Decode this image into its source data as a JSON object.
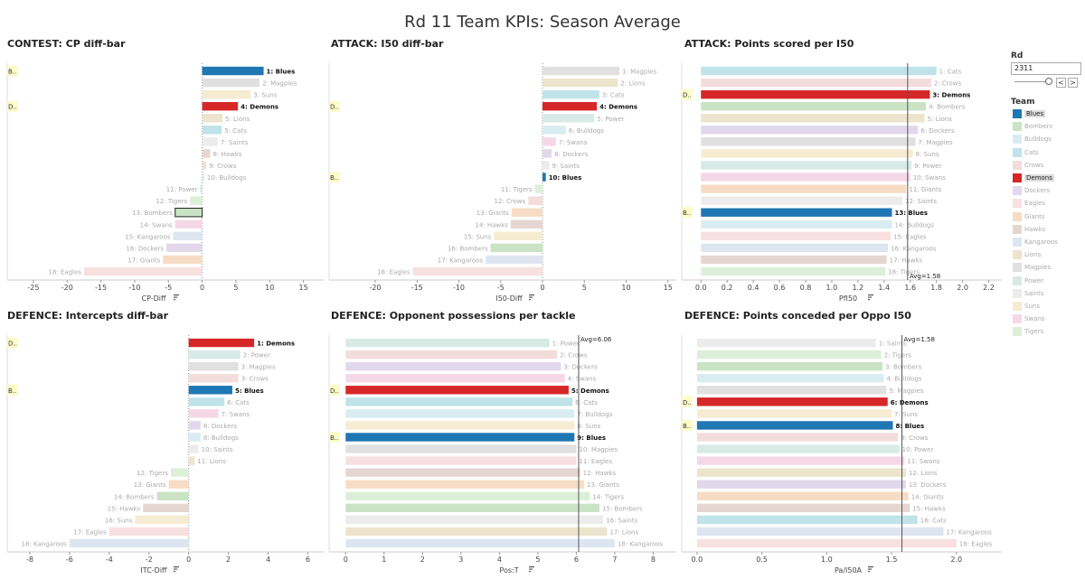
{
  "title": "Rd 11 Team KPIs: Season Average",
  "chart_data": [
    {
      "type": "bar",
      "title": "CONTEST: CP diff-bar",
      "xlabel": "CP-Diff",
      "xlim": [
        -27,
        18
      ],
      "ticks": [
        -25,
        -20,
        -15,
        -10,
        -5,
        0,
        5,
        10,
        15
      ],
      "categories": [
        "1: Blues",
        "2: Magpies",
        "3: Suns",
        "4: Demons",
        "5: Lions",
        "5: Cats",
        "7: Saints",
        "8: Hawks",
        "9: Crows",
        "10: Bulldogs",
        "11: Power",
        "12: Tigers",
        "13: Bombers",
        "14: Swans",
        "15: Kangaroos",
        "16: Dockers",
        "17: Giants",
        "18: Eagles"
      ],
      "values": [
        9.1,
        8.5,
        7.2,
        5.3,
        3.0,
        2.9,
        2.3,
        1.2,
        0.6,
        0.3,
        -0.3,
        -1.8,
        -4.0,
        -4.0,
        -4.3,
        -5.3,
        -5.8,
        -17.5
      ],
      "markers": [
        "B..",
        "D.."
      ]
    },
    {
      "type": "bar",
      "title": "ATTACK: I50 diff-bar",
      "xlabel": "I50-Diff",
      "xlim": [
        -24,
        16
      ],
      "ticks": [
        -20,
        -15,
        -10,
        -5,
        0,
        5,
        10,
        15
      ],
      "categories": [
        "1: Magpies",
        "2: Lions",
        "3: Cats",
        "4: Demons",
        "5: Power",
        "6: Bulldogs",
        "7: Swans",
        "8: Dockers",
        "9: Saints",
        "10: Blues",
        "11: Tigers",
        "12: Crows",
        "13: Giants",
        "14: Hawks",
        "15: Suns",
        "16: Bombers",
        "17: Kangaroos",
        "18: Eagles"
      ],
      "values": [
        9.2,
        9.0,
        6.8,
        6.5,
        6.2,
        2.8,
        1.6,
        1.1,
        0.8,
        0.4,
        -0.9,
        -1.7,
        -3.7,
        -3.8,
        -5.8,
        -6.2,
        -6.8,
        -15.5
      ],
      "markers": [
        "D..",
        "B.."
      ]
    },
    {
      "type": "bar",
      "title": "ATTACK: Points scored per I50",
      "xlabel": "PfI50",
      "xlim": [
        -0.05,
        2.3
      ],
      "ticks": [
        0.0,
        0.2,
        0.4,
        0.6,
        0.8,
        1.0,
        1.2,
        1.4,
        1.6,
        1.8,
        2.0,
        2.2
      ],
      "categories": [
        "1: Cats",
        "2: Crows",
        "3: Demons",
        "4: Bombers",
        "5: Lions",
        "6: Dockers",
        "7: Magpies",
        "8: Suns",
        "9: Power",
        "10: Swans",
        "11: Giants",
        "12: Saints",
        "13: Blues",
        "14: Bulldogs",
        "15: Eagles",
        "16: Kangaroos",
        "17: Hawks",
        "18: Tigers"
      ],
      "values": [
        1.8,
        1.76,
        1.75,
        1.72,
        1.71,
        1.66,
        1.64,
        1.62,
        1.61,
        1.6,
        1.57,
        1.54,
        1.46,
        1.46,
        1.45,
        1.43,
        1.42,
        1.41
      ],
      "average": 1.58,
      "average_label": "Avg=1.58",
      "markers": [
        "D..",
        "B.."
      ]
    },
    {
      "type": "bar",
      "title": "DEFENCE: Intercepts diff-bar",
      "xlabel": "ITC-Diff",
      "xlim": [
        -8.5,
        6.8
      ],
      "ticks": [
        -8,
        -6,
        -4,
        -2,
        0,
        2,
        4,
        6
      ],
      "categories": [
        "1: Demons",
        "2: Power",
        "3: Magpies",
        "3: Crows",
        "5: Blues",
        "6: Cats",
        "7: Swans",
        "8: Dockers",
        "8: Bulldogs",
        "10: Saints",
        "11: Lions",
        "12: Tigers",
        "13: Giants",
        "14: Bombers",
        "15: Hawks",
        "16: Suns",
        "17: Eagles",
        "18: Kangaroos"
      ],
      "values": [
        3.3,
        2.6,
        2.5,
        2.5,
        2.2,
        1.8,
        1.5,
        0.6,
        0.6,
        0.5,
        0.3,
        -0.9,
        -1.0,
        -1.6,
        -2.3,
        -2.7,
        -4.0,
        -6.0
      ],
      "markers": [
        "D..",
        "B.."
      ]
    },
    {
      "type": "bar",
      "title": "DEFENCE: Opponent possessions per tackle",
      "xlabel": "Pos:T",
      "xlim": [
        -0.1,
        8.6
      ],
      "ticks": [
        0,
        1,
        2,
        3,
        4,
        5,
        6,
        7,
        8
      ],
      "categories": [
        "1: Power",
        "2: Crows",
        "3: Dockers",
        "4: Swans",
        "5: Demons",
        "6: Cats",
        "7: Bulldogs",
        "8: Suns",
        "9: Blues",
        "10: Magpies",
        "11: Eagles",
        "12: Hawks",
        "13: Giants",
        "14: Tigers",
        "15: Bombers",
        "16: Saints",
        "17: Lions",
        "18: Kangaroos"
      ],
      "values": [
        5.3,
        5.5,
        5.6,
        5.7,
        5.8,
        5.9,
        5.95,
        5.95,
        5.95,
        6.0,
        6.0,
        6.1,
        6.2,
        6.35,
        6.6,
        6.7,
        6.8,
        7.0
      ],
      "average": 6.06,
      "average_label": "Avg=6.06",
      "markers": [
        "D..",
        "B.."
      ]
    },
    {
      "type": "bar",
      "title": "DEFENCE: Points conceded per Oppo I50",
      "xlabel": "Pa/I50A",
      "xlim": [
        -0.02,
        2.35
      ],
      "ticks": [
        0.0,
        0.5,
        1.0,
        1.5,
        2.0
      ],
      "categories": [
        "1: Saints",
        "2: Tigers",
        "3: Bombers",
        "4: Bulldogs",
        "5: Magpies",
        "6: Demons",
        "7: Suns",
        "8: Blues",
        "9: Crows",
        "10: Power",
        "11: Swans",
        "12: Lions",
        "13: Dockers",
        "14: Giants",
        "15: Hawks",
        "16: Cats",
        "17: Kangaroos",
        "18: Eagles"
      ],
      "values": [
        1.38,
        1.42,
        1.43,
        1.44,
        1.46,
        1.47,
        1.5,
        1.51,
        1.55,
        1.56,
        1.6,
        1.61,
        1.61,
        1.63,
        1.64,
        1.7,
        1.9,
        2.0
      ],
      "average": 1.58,
      "average_label": "Avg=1.58",
      "markers": [
        "D..",
        "B.."
      ]
    }
  ],
  "filter": {
    "title": "Rd",
    "value": "2311",
    "prev": "<",
    "next": ">"
  },
  "legend": {
    "title": "Team",
    "items": [
      {
        "name": "Blues",
        "color": "#1f77b4",
        "highlight": true
      },
      {
        "name": "Bombers",
        "color": "#c9e3c4",
        "highlight": false
      },
      {
        "name": "Bulldogs",
        "color": "#d9ecf2",
        "highlight": false
      },
      {
        "name": "Cats",
        "color": "#bfe3e8",
        "highlight": false
      },
      {
        "name": "Crows",
        "color": "#f2dcdc",
        "highlight": false
      },
      {
        "name": "Demons",
        "color": "#d62728",
        "highlight": true
      },
      {
        "name": "Dockers",
        "color": "#e2d8ec",
        "highlight": false
      },
      {
        "name": "Eagles",
        "color": "#f8e0e0",
        "highlight": false
      },
      {
        "name": "Giants",
        "color": "#f6dcc4",
        "highlight": false
      },
      {
        "name": "Hawks",
        "color": "#e6d6d2",
        "highlight": false
      },
      {
        "name": "Kangaroos",
        "color": "#dde6f0",
        "highlight": false
      },
      {
        "name": "Lions",
        "color": "#ece4cc",
        "highlight": false
      },
      {
        "name": "Magpies",
        "color": "#e0e0e0",
        "highlight": false
      },
      {
        "name": "Power",
        "color": "#d8eae6",
        "highlight": false
      },
      {
        "name": "Saints",
        "color": "#ececec",
        "highlight": false
      },
      {
        "name": "Suns",
        "color": "#f6ecd2",
        "highlight": false
      },
      {
        "name": "Swans",
        "color": "#f4d8e6",
        "highlight": false
      },
      {
        "name": "Tigers",
        "color": "#dcefd8",
        "highlight": false
      }
    ]
  }
}
